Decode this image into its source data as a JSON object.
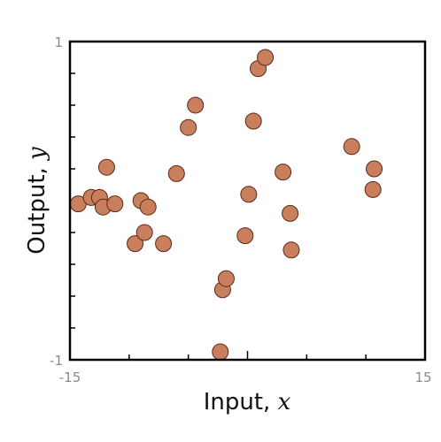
{
  "chart_data": {
    "type": "scatter",
    "xlabel": "Input, ",
    "xlabel_var": "x",
    "ylabel": "Output, ",
    "ylabel_var": "y",
    "xlim": [
      -15,
      15
    ],
    "ylim": [
      -1,
      1
    ],
    "x_tick_labels": [
      "-15",
      "15"
    ],
    "y_tick_labels": [
      "1",
      "-1"
    ],
    "grid": false,
    "marker_color": "#c97f5d",
    "marker_edge_color": "#5a2a16",
    "points": [
      {
        "x": -14.3,
        "y": -0.02
      },
      {
        "x": -13.2,
        "y": 0.02
      },
      {
        "x": -12.5,
        "y": 0.02
      },
      {
        "x": -12.2,
        "y": -0.04
      },
      {
        "x": -11.9,
        "y": 0.21
      },
      {
        "x": -11.2,
        "y": -0.02
      },
      {
        "x": -9.5,
        "y": -0.27
      },
      {
        "x": -9.0,
        "y": 0.0
      },
      {
        "x": -8.7,
        "y": -0.2
      },
      {
        "x": -8.4,
        "y": -0.04
      },
      {
        "x": -7.1,
        "y": -0.27
      },
      {
        "x": -6.0,
        "y": 0.17
      },
      {
        "x": -5.0,
        "y": 0.46
      },
      {
        "x": -4.4,
        "y": 0.6
      },
      {
        "x": -2.3,
        "y": -0.95
      },
      {
        "x": -2.1,
        "y": -0.56
      },
      {
        "x": -1.8,
        "y": -0.49
      },
      {
        "x": -0.2,
        "y": -0.22
      },
      {
        "x": 0.1,
        "y": 0.04
      },
      {
        "x": 0.5,
        "y": 0.5
      },
      {
        "x": 0.9,
        "y": 0.83
      },
      {
        "x": 1.5,
        "y": 0.9
      },
      {
        "x": 3.0,
        "y": 0.18
      },
      {
        "x": 3.6,
        "y": -0.08
      },
      {
        "x": 3.7,
        "y": -0.31
      },
      {
        "x": 8.8,
        "y": 0.34
      },
      {
        "x": 10.6,
        "y": 0.07
      },
      {
        "x": 10.7,
        "y": 0.2
      }
    ]
  }
}
